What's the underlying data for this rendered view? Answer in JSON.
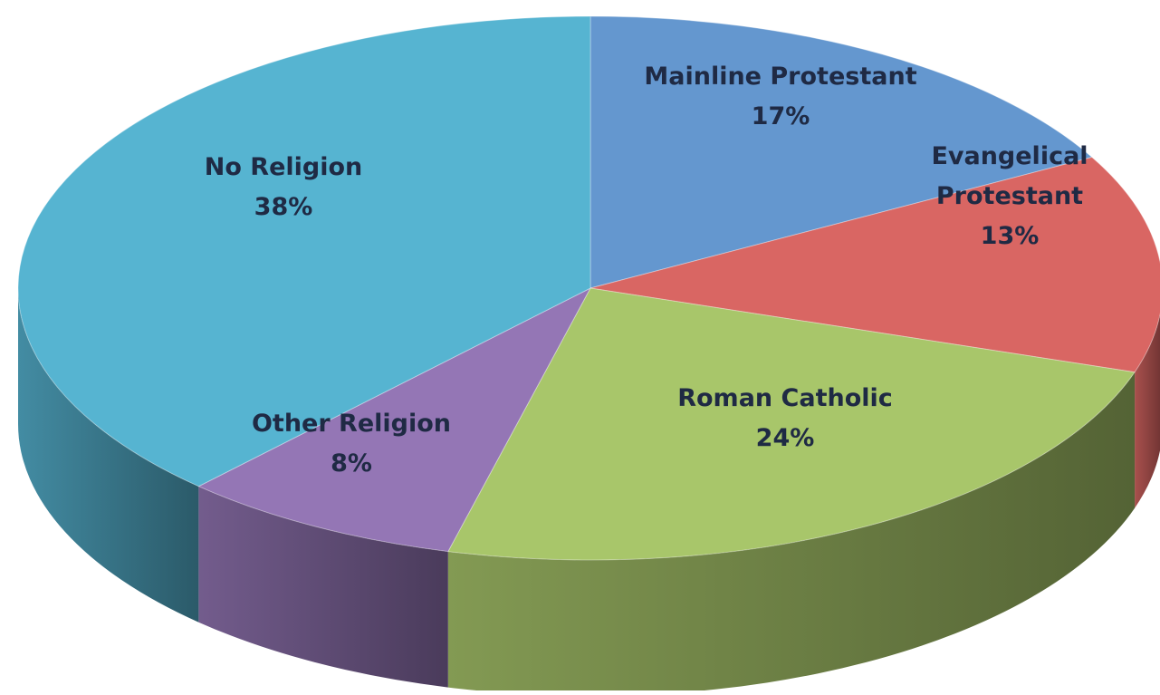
{
  "chart_data": {
    "type": "pie",
    "style": "3d",
    "start_angle_deg": 0,
    "direction": "clockwise",
    "slices": [
      {
        "name": "Mainline Protestant",
        "label_lines": [
          "Mainline Protestant"
        ],
        "value": 17,
        "value_label": "17%",
        "color": "#6497cf"
      },
      {
        "name": "Evangelical Protestant",
        "label_lines": [
          "Evangelical",
          "Protestant"
        ],
        "value": 13,
        "value_label": "13%",
        "color": "#d96663"
      },
      {
        "name": "Roman Catholic",
        "label_lines": [
          "Roman Catholic"
        ],
        "value": 24,
        "value_label": "24%",
        "color": "#a8c66a"
      },
      {
        "name": "Other Religion",
        "label_lines": [
          "Other Religion"
        ],
        "value": 8,
        "value_label": "8%",
        "color": "#9476b5"
      },
      {
        "name": "No Religion",
        "label_lines": [
          "No Religion"
        ],
        "value": 38,
        "value_label": "38%",
        "color": "#56b4d1"
      }
    ],
    "title": "",
    "legend": "none"
  }
}
